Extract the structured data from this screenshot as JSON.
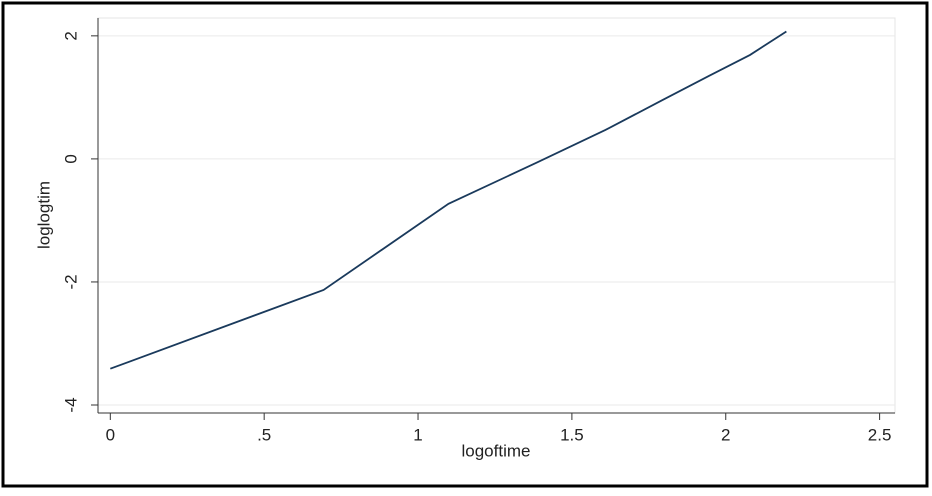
{
  "chart_data": {
    "type": "line",
    "x_label": "logoftime",
    "y_label": "loglogtim",
    "x": [
      0,
      0.693,
      1.099,
      1.386,
      1.609,
      1.792,
      1.946,
      2.079,
      2.197
    ],
    "series": [
      {
        "color": "#1a3a5c",
        "values": [
          -3.41,
          -2.13,
          -0.73,
          -0.06,
          0.47,
          0.95,
          1.35,
          1.69,
          2.07
        ]
      }
    ],
    "xlim": [
      -0.04,
      2.55
    ],
    "xticks": [
      0,
      {
        "value": 0.5,
        "label": ".5"
      },
      1,
      1.5,
      2,
      2.5
    ],
    "ylim": [
      -4.13,
      2.29
    ],
    "yticks": [
      -4,
      -2,
      0,
      2
    ],
    "grid": true
  }
}
